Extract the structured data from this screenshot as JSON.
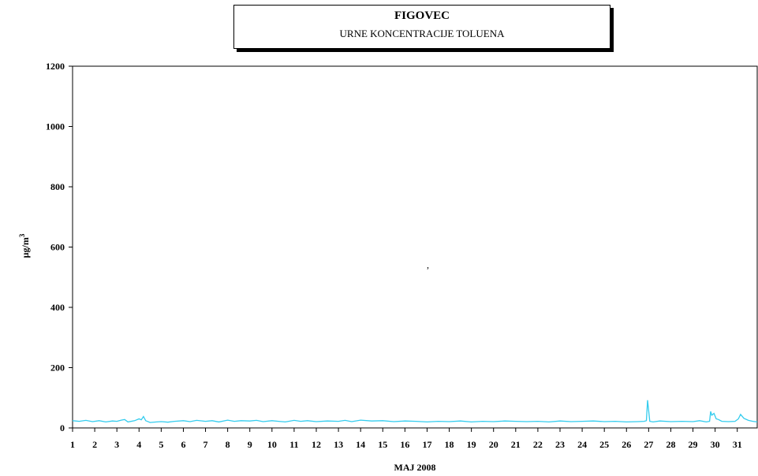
{
  "header": {
    "title": "FIGOVEC",
    "subtitle": "URNE KONCENTRACIJE TOLUENA"
  },
  "stray_mark": ",",
  "chart_data": {
    "type": "line",
    "title": "FIGOVEC",
    "subtitle": "URNE KONCENTRACIJE TOLUENA",
    "xlabel": "MAJ 2008",
    "ylabel": "µg/m",
    "ylabel_superscript": "3",
    "ylim": [
      0,
      1200
    ],
    "yticks": [
      0,
      200,
      400,
      600,
      800,
      1000,
      1200
    ],
    "xlim": [
      1,
      31.9
    ],
    "x_tick_labels": [
      "1",
      "2",
      "3",
      "4",
      "5",
      "6",
      "7",
      "8",
      "9",
      "10",
      "11",
      "12",
      "13",
      "14",
      "15",
      "16",
      "17",
      "18",
      "19",
      "20",
      "21",
      "22",
      "23",
      "24",
      "25",
      "26",
      "27",
      "28",
      "29",
      "30",
      "31"
    ],
    "grid": false,
    "line_color": "#33ccee",
    "series": [
      {
        "x": [
          1,
          1.3,
          1.6,
          1.9,
          2.2,
          2.5,
          2.8,
          3.0,
          3.2,
          3.35,
          3.5,
          3.8,
          4.0,
          4.1,
          4.2,
          4.3,
          4.5,
          4.8,
          5.0,
          5.3,
          5.6,
          6.0,
          6.3,
          6.6,
          7.0,
          7.3,
          7.6,
          8.0,
          8.3,
          8.6,
          9.0,
          9.3,
          9.6,
          10.0,
          10.3,
          10.6,
          11.0,
          11.3,
          11.6,
          12.0,
          12.5,
          13.0,
          13.3,
          13.6,
          14.0,
          14.5,
          15.0,
          15.5,
          16.0,
          16.5,
          17.0,
          17.5,
          18.0,
          18.5,
          19.0,
          19.5,
          20.0,
          20.5,
          21.0,
          21.5,
          22.0,
          22.5,
          23.0,
          23.5,
          24.0,
          24.5,
          25.0,
          25.5,
          26.0,
          26.5,
          26.8,
          26.9,
          26.95,
          27.05,
          27.2,
          27.5,
          28.0,
          28.5,
          29.0,
          29.3,
          29.6,
          29.75,
          29.8,
          29.85,
          29.95,
          30.05,
          30.15,
          30.3,
          30.6,
          30.9,
          31.05,
          31.15,
          31.3,
          31.5,
          31.7,
          31.9
        ],
        "values": [
          24,
          22,
          25,
          21,
          24,
          20,
          23,
          22,
          26,
          28,
          20,
          24,
          30,
          27,
          38,
          24,
          18,
          20,
          21,
          19,
          22,
          24,
          21,
          25,
          22,
          24,
          20,
          26,
          22,
          24,
          23,
          25,
          21,
          24,
          22,
          20,
          25,
          22,
          24,
          21,
          23,
          22,
          25,
          21,
          26,
          23,
          24,
          21,
          23,
          22,
          20,
          22,
          21,
          23,
          20,
          22,
          21,
          23,
          22,
          21,
          22,
          20,
          23,
          21,
          22,
          23,
          21,
          22,
          20,
          21,
          22,
          24,
          92,
          22,
          20,
          23,
          21,
          22,
          21,
          24,
          20,
          22,
          55,
          42,
          48,
          30,
          28,
          22,
          21,
          22,
          30,
          45,
          32,
          25,
          22,
          20
        ]
      }
    ]
  }
}
